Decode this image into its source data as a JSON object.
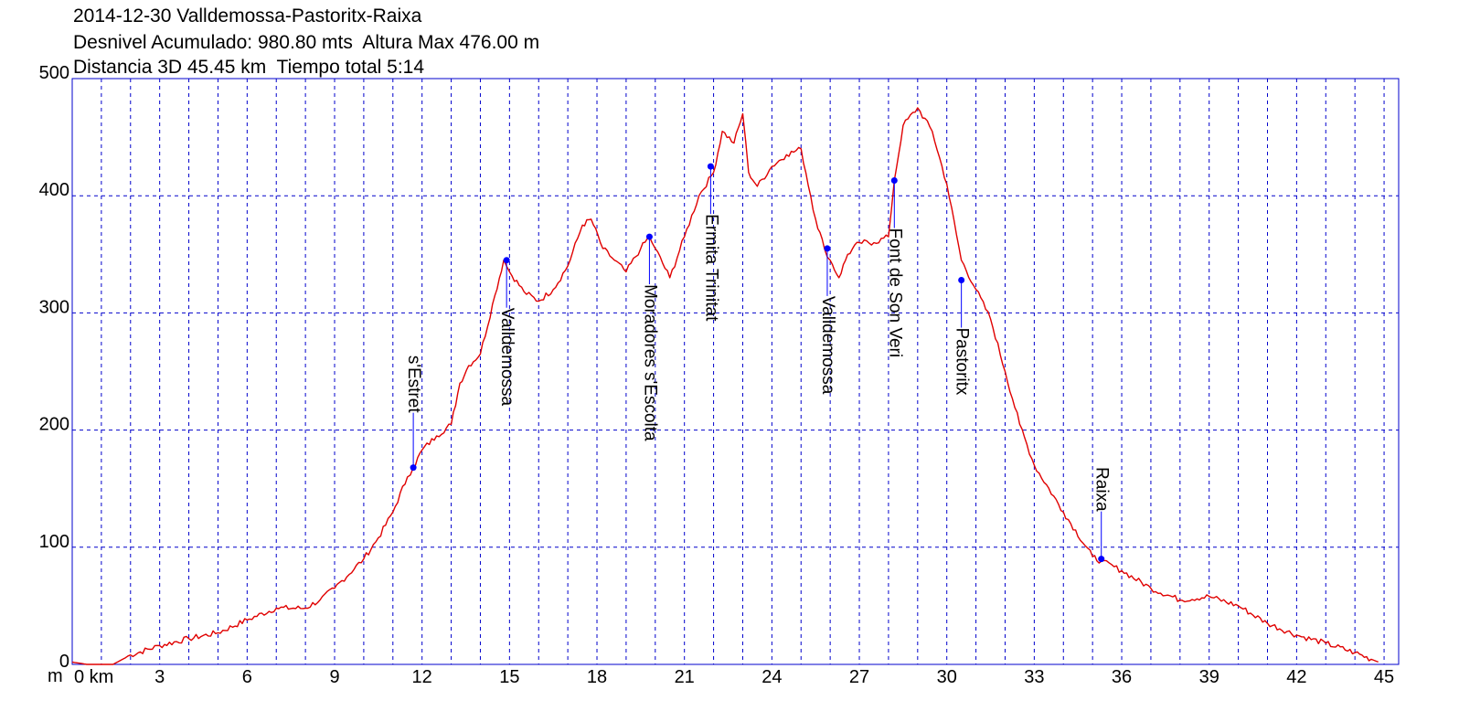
{
  "header": {
    "line1": "2014-12-30 Valldemossa-Pastoritx-Raixa",
    "line2": "Desnivel Acumulado: 980.80 mts  Altura Max 476.00 m",
    "line3": "Distancia 3D 45.45 km  Tiempo total 5:14"
  },
  "chart_data": {
    "type": "line",
    "title": "",
    "xlabel": "km",
    "ylabel": "m",
    "xlim": [
      0,
      45.5
    ],
    "ylim": [
      0,
      500
    ],
    "x_ticks": [
      0,
      3,
      6,
      9,
      12,
      15,
      18,
      21,
      24,
      27,
      30,
      33,
      36,
      39,
      42,
      45
    ],
    "x_tick_labels": [
      "0 km",
      "3",
      "6",
      "9",
      "12",
      "15",
      "18",
      "21",
      "24",
      "27",
      "30",
      "33",
      "36",
      "39",
      "42",
      "45"
    ],
    "y_ticks": [
      0,
      100,
      200,
      300,
      400,
      500
    ],
    "y_tick_labels": [
      "0",
      "100",
      "200",
      "300",
      "400",
      "500"
    ],
    "y_unit_label": "m",
    "grid": true,
    "colors": {
      "line": "#e00000",
      "frame": "#0000cc",
      "grid": "#0000cc",
      "marker": "#0000ff"
    },
    "series": [
      {
        "x": [
          0,
          0.5,
          1.4,
          2,
          3,
          4,
          5,
          6,
          7,
          8,
          8.5,
          9,
          10,
          10.5,
          11,
          11.5,
          11.7,
          12,
          12.5,
          13,
          13.3,
          13.6,
          14,
          14.5,
          14.8,
          15,
          15.5,
          16,
          16.5,
          17,
          17.5,
          17.8,
          18.2,
          18.6,
          19,
          19.5,
          19.8,
          20,
          20.5,
          21,
          21.5,
          22,
          22.3,
          22.7,
          23,
          23.2,
          23.5,
          24,
          24.5,
          25,
          25.5,
          25.8,
          26,
          26.3,
          26.6,
          27,
          27.5,
          28,
          28.2,
          28.5,
          29,
          29.5,
          30,
          30.5,
          31,
          31.5,
          32,
          32.5,
          33,
          34,
          35,
          35.3,
          36,
          37,
          38,
          39,
          40,
          41,
          42,
          43,
          44,
          44.8
        ],
        "y": [
          2,
          0,
          0,
          8,
          16,
          22,
          27,
          38,
          48,
          48,
          55,
          65,
          90,
          108,
          130,
          160,
          168,
          183,
          195,
          205,
          240,
          255,
          265,
          315,
          345,
          335,
          318,
          310,
          320,
          340,
          375,
          380,
          355,
          345,
          335,
          355,
          365,
          355,
          330,
          365,
          400,
          420,
          455,
          445,
          470,
          420,
          408,
          425,
          435,
          440,
          380,
          355,
          345,
          330,
          350,
          360,
          360,
          365,
          413,
          460,
          475,
          455,
          410,
          345,
          320,
          295,
          250,
          205,
          170,
          130,
          92,
          88,
          80,
          65,
          55,
          58,
          50,
          35,
          25,
          18,
          10,
          2
        ]
      }
    ],
    "waypoints": [
      {
        "name": "s'Estret",
        "x": 11.7,
        "y": 168
      },
      {
        "name": "Valldemossa",
        "x": 14.9,
        "y": 345
      },
      {
        "name": "Moradores s'Escolta",
        "x": 19.8,
        "y": 365
      },
      {
        "name": "Ermita Trinitat",
        "x": 21.9,
        "y": 425
      },
      {
        "name": "Valldemossa",
        "x": 25.9,
        "y": 355
      },
      {
        "name": "Font de Son Veri",
        "x": 28.2,
        "y": 413
      },
      {
        "name": "Pastoritx",
        "x": 30.5,
        "y": 328
      },
      {
        "name": "Raixa",
        "x": 35.3,
        "y": 90
      }
    ]
  }
}
